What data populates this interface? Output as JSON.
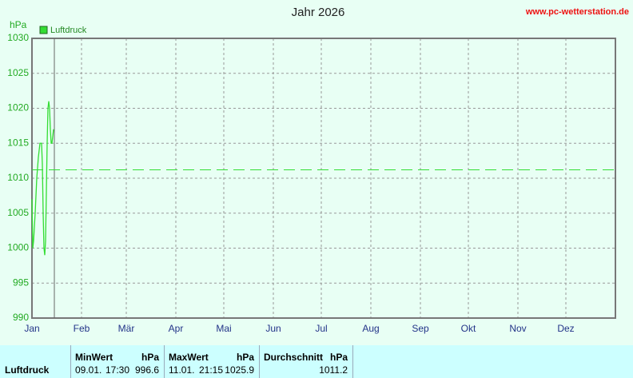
{
  "chart_data": {
    "type": "line",
    "title": "Jahr 2026",
    "source": "www.pc-wetterstation.de",
    "y_label": "hPa",
    "x": [
      0,
      0.5,
      1,
      2,
      3,
      4,
      5,
      6,
      6.5,
      7,
      7.5,
      8,
      8.5,
      9,
      9.5,
      10,
      10.5,
      11,
      11.5,
      12,
      12.5,
      13,
      13.5
    ],
    "series": [
      {
        "name": "Luftdruck",
        "color": "#33dd33",
        "values": [
          1007,
          1000,
          1001,
          1005,
          1010,
          1013,
          1015,
          1015,
          1012,
          1005,
          1000,
          999,
          1001,
          1008,
          1015,
          1020,
          1021,
          1020,
          1017,
          1015,
          1015,
          1016,
          1017
        ]
      }
    ],
    "xlim": [
      0,
      365
    ],
    "xticks": [
      {
        "value": 0,
        "label": "Jan"
      },
      {
        "value": 31,
        "label": "Feb"
      },
      {
        "value": 59,
        "label": "Mär"
      },
      {
        "value": 90,
        "label": "Apr"
      },
      {
        "value": 120,
        "label": "Mai"
      },
      {
        "value": 151,
        "label": "Jun"
      },
      {
        "value": 181,
        "label": "Jul"
      },
      {
        "value": 212,
        "label": "Aug"
      },
      {
        "value": 243,
        "label": "Sep"
      },
      {
        "value": 273,
        "label": "Okt"
      },
      {
        "value": 304,
        "label": "Nov"
      },
      {
        "value": 334,
        "label": "Dez"
      }
    ],
    "ylim": [
      990,
      1030
    ],
    "yticks": [
      990,
      995,
      1000,
      1005,
      1010,
      1015,
      1020,
      1025,
      1030
    ],
    "today_x": 14,
    "grid": true
  },
  "table": {
    "row_label": "Luftdruck",
    "min": {
      "header": "MinWert",
      "unit": "hPa",
      "date": "09.01.",
      "time": "17:30",
      "value": 996.6
    },
    "max": {
      "header": "MaxWert",
      "unit": "hPa",
      "date": "11.01.",
      "time": "21:15",
      "value": 1025.9
    },
    "avg": {
      "header": "Durchschnitt",
      "unit": "hPa",
      "value": 1011.2
    }
  }
}
